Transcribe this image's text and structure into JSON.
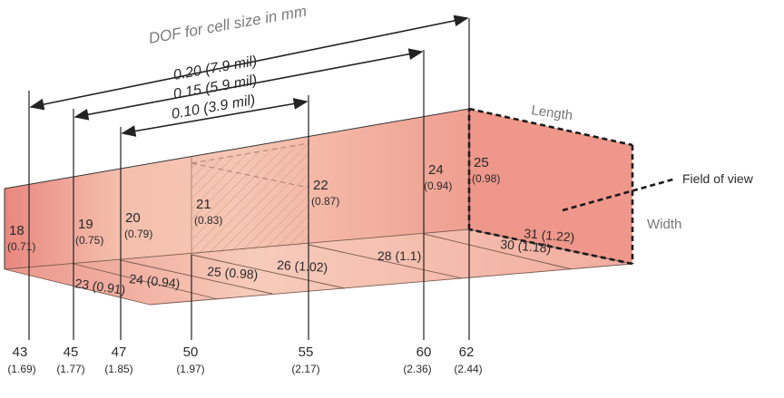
{
  "title": "DOF for cell size in mm",
  "dof_ranges": [
    {
      "label": "0.20 (7.9 mil)"
    },
    {
      "label": "0.15 (5.9 mil)"
    },
    {
      "label": "0.10  (3.9 mil)"
    }
  ],
  "labels": {
    "length": "Length",
    "width": "Width",
    "field_of_view": "Field of view"
  },
  "axis_ticks": [
    {
      "mm": "43",
      "in": "(1.69)"
    },
    {
      "mm": "45",
      "in": "(1.77)"
    },
    {
      "mm": "47",
      "in": "(1.85)"
    },
    {
      "mm": "50",
      "in": "(1.97)"
    },
    {
      "mm": "55",
      "in": "(2.17)"
    },
    {
      "mm": "60",
      "in": "(2.36)"
    },
    {
      "mm": "62",
      "in": "(2.44)"
    }
  ],
  "front_heights": [
    {
      "mm": "18",
      "in": "(0.71)"
    },
    {
      "mm": "19",
      "in": "(0.75)"
    },
    {
      "mm": "20",
      "in": "(0.79)"
    },
    {
      "mm": "21",
      "in": "(0.83)"
    },
    {
      "mm": "22",
      "in": "(0.87)"
    },
    {
      "mm": "24",
      "in": "(0.94)"
    },
    {
      "mm": "25",
      "in": "(0.98)"
    }
  ],
  "bottom_widths": [
    {
      "text": "23 (0.91)"
    },
    {
      "text": "24 (0.94)"
    },
    {
      "text": "25 (0.98)"
    },
    {
      "text": "26 (1.02)"
    },
    {
      "text": "28 (1.1)"
    },
    {
      "text": "30 (1.18)"
    },
    {
      "text": "31 (1.22)"
    }
  ],
  "colors": {
    "face_left": "#e98e85",
    "face_mid": "#f3b9a5",
    "face_right": "#ee9c8e",
    "top_face": "#f4b6a5",
    "bottom_face": "#f6c0b0",
    "end_face": "#ee978a"
  }
}
